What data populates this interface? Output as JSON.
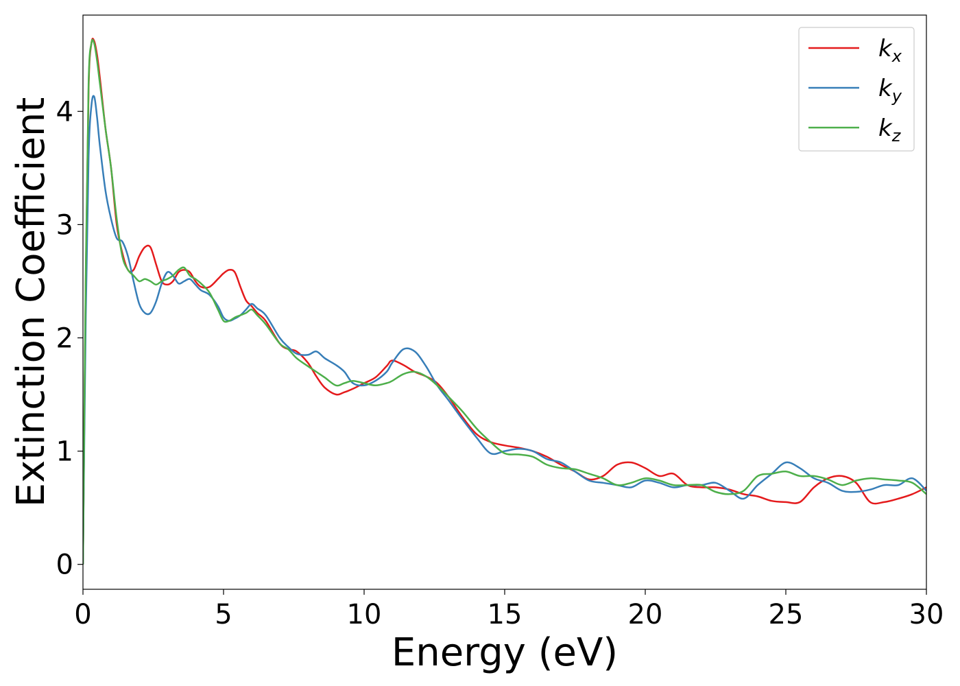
{
  "chart_data": {
    "type": "line",
    "title": "",
    "xlabel": "Energy (eV)",
    "ylabel": "Extinction Coefficient",
    "xlim": [
      0,
      30
    ],
    "ylim": [
      -0.22,
      4.85
    ],
    "xticks": [
      0,
      5,
      10,
      15,
      20,
      25,
      30
    ],
    "yticks": [
      0,
      1,
      2,
      3,
      4
    ],
    "grid": false,
    "legend_position": "top-right",
    "series": [
      {
        "name": "k_x",
        "label_base": "k",
        "label_sub": "x",
        "color": "#e41a1c",
        "x": [
          0,
          0.1,
          0.2,
          0.3,
          0.4,
          0.5,
          0.6,
          0.8,
          1.0,
          1.2,
          1.4,
          1.6,
          1.8,
          2.0,
          2.2,
          2.4,
          2.6,
          2.8,
          3.0,
          3.2,
          3.4,
          3.6,
          3.8,
          4.0,
          4.2,
          4.5,
          4.8,
          5.0,
          5.2,
          5.4,
          5.6,
          5.8,
          6.0,
          6.2,
          6.5,
          7.0,
          7.3,
          7.6,
          8.0,
          8.3,
          8.6,
          9.0,
          9.3,
          9.6,
          10.0,
          10.4,
          10.8,
          11.0,
          11.4,
          11.8,
          12.2,
          12.6,
          13.0,
          13.5,
          14.0,
          14.5,
          15.0,
          15.5,
          16.0,
          16.5,
          17.0,
          17.5,
          18.0,
          18.5,
          19.0,
          19.5,
          20.0,
          20.5,
          21.0,
          21.5,
          22.0,
          22.5,
          23.0,
          23.5,
          24.0,
          24.5,
          25.0,
          25.5,
          26.0,
          26.5,
          27.0,
          27.5,
          28.0,
          28.5,
          29.0,
          29.5,
          30.0
        ],
        "y": [
          0.0,
          2.5,
          4.2,
          4.6,
          4.62,
          4.5,
          4.3,
          3.85,
          3.5,
          3.0,
          2.75,
          2.6,
          2.6,
          2.72,
          2.8,
          2.8,
          2.65,
          2.5,
          2.47,
          2.5,
          2.58,
          2.6,
          2.58,
          2.5,
          2.45,
          2.45,
          2.52,
          2.57,
          2.6,
          2.58,
          2.45,
          2.33,
          2.28,
          2.22,
          2.15,
          1.95,
          1.9,
          1.88,
          1.78,
          1.66,
          1.56,
          1.5,
          1.52,
          1.55,
          1.6,
          1.65,
          1.75,
          1.8,
          1.76,
          1.7,
          1.66,
          1.6,
          1.48,
          1.3,
          1.15,
          1.08,
          1.05,
          1.03,
          1.0,
          0.95,
          0.88,
          0.82,
          0.75,
          0.78,
          0.88,
          0.9,
          0.85,
          0.78,
          0.8,
          0.7,
          0.68,
          0.68,
          0.66,
          0.62,
          0.6,
          0.56,
          0.55,
          0.55,
          0.68,
          0.76,
          0.78,
          0.72,
          0.55,
          0.55,
          0.58,
          0.62,
          0.68
        ]
      },
      {
        "name": "k_y",
        "label_base": "k",
        "label_sub": "y",
        "color": "#377eb8",
        "x": [
          0,
          0.1,
          0.2,
          0.3,
          0.4,
          0.5,
          0.6,
          0.8,
          1.0,
          1.2,
          1.4,
          1.6,
          1.8,
          2.0,
          2.2,
          2.4,
          2.6,
          2.8,
          3.0,
          3.2,
          3.4,
          3.6,
          3.8,
          4.0,
          4.2,
          4.5,
          4.8,
          5.0,
          5.2,
          5.4,
          5.6,
          5.8,
          6.0,
          6.2,
          6.5,
          7.0,
          7.3,
          7.6,
          8.0,
          8.3,
          8.6,
          9.0,
          9.3,
          9.6,
          10.0,
          10.4,
          10.8,
          11.0,
          11.4,
          11.8,
          12.2,
          12.6,
          13.0,
          13.5,
          14.0,
          14.5,
          15.0,
          15.5,
          16.0,
          16.5,
          17.0,
          17.5,
          18.0,
          18.5,
          19.0,
          19.5,
          20.0,
          20.5,
          21.0,
          21.5,
          22.0,
          22.5,
          23.0,
          23.5,
          24.0,
          24.5,
          25.0,
          25.5,
          26.0,
          26.5,
          27.0,
          27.5,
          28.0,
          28.5,
          29.0,
          29.5,
          30.0
        ],
        "y": [
          0.0,
          2.2,
          3.6,
          4.05,
          4.13,
          3.95,
          3.7,
          3.3,
          3.05,
          2.88,
          2.85,
          2.72,
          2.5,
          2.3,
          2.22,
          2.22,
          2.32,
          2.48,
          2.58,
          2.55,
          2.48,
          2.5,
          2.52,
          2.47,
          2.42,
          2.38,
          2.28,
          2.18,
          2.15,
          2.17,
          2.2,
          2.25,
          2.3,
          2.26,
          2.2,
          2.0,
          1.92,
          1.86,
          1.85,
          1.88,
          1.82,
          1.76,
          1.7,
          1.6,
          1.58,
          1.62,
          1.7,
          1.78,
          1.9,
          1.88,
          1.75,
          1.58,
          1.45,
          1.28,
          1.12,
          0.98,
          1.0,
          1.02,
          1.0,
          0.93,
          0.9,
          0.82,
          0.74,
          0.72,
          0.7,
          0.68,
          0.74,
          0.72,
          0.68,
          0.7,
          0.7,
          0.72,
          0.65,
          0.58,
          0.7,
          0.8,
          0.9,
          0.85,
          0.76,
          0.72,
          0.65,
          0.64,
          0.66,
          0.7,
          0.7,
          0.76,
          0.65
        ]
      },
      {
        "name": "k_z",
        "label_base": "k",
        "label_sub": "z",
        "color": "#4daf4a",
        "x": [
          0,
          0.1,
          0.2,
          0.3,
          0.4,
          0.5,
          0.6,
          0.8,
          1.0,
          1.2,
          1.4,
          1.6,
          1.8,
          2.0,
          2.2,
          2.4,
          2.6,
          2.8,
          3.0,
          3.2,
          3.4,
          3.6,
          3.8,
          4.0,
          4.2,
          4.5,
          4.8,
          5.0,
          5.2,
          5.4,
          5.6,
          5.8,
          6.0,
          6.2,
          6.5,
          7.0,
          7.3,
          7.6,
          8.0,
          8.3,
          8.6,
          9.0,
          9.3,
          9.6,
          10.0,
          10.4,
          10.8,
          11.0,
          11.4,
          11.8,
          12.2,
          12.6,
          13.0,
          13.5,
          14.0,
          14.5,
          15.0,
          15.5,
          16.0,
          16.5,
          17.0,
          17.5,
          18.0,
          18.5,
          19.0,
          19.5,
          20.0,
          20.5,
          21.0,
          21.5,
          22.0,
          22.5,
          23.0,
          23.5,
          24.0,
          24.5,
          25.0,
          25.5,
          26.0,
          26.5,
          27.0,
          27.5,
          28.0,
          28.5,
          29.0,
          29.5,
          30.0
        ],
        "y": [
          0.0,
          2.6,
          4.25,
          4.6,
          4.6,
          4.45,
          4.25,
          3.85,
          3.5,
          3.05,
          2.72,
          2.6,
          2.55,
          2.5,
          2.52,
          2.5,
          2.47,
          2.5,
          2.52,
          2.55,
          2.6,
          2.62,
          2.55,
          2.52,
          2.48,
          2.4,
          2.25,
          2.15,
          2.15,
          2.18,
          2.2,
          2.22,
          2.25,
          2.2,
          2.12,
          1.95,
          1.9,
          1.82,
          1.75,
          1.7,
          1.65,
          1.58,
          1.6,
          1.62,
          1.6,
          1.58,
          1.6,
          1.62,
          1.68,
          1.7,
          1.66,
          1.58,
          1.48,
          1.35,
          1.2,
          1.08,
          0.98,
          0.97,
          0.95,
          0.88,
          0.85,
          0.84,
          0.8,
          0.76,
          0.7,
          0.72,
          0.76,
          0.74,
          0.7,
          0.7,
          0.7,
          0.64,
          0.62,
          0.65,
          0.78,
          0.8,
          0.82,
          0.78,
          0.78,
          0.75,
          0.7,
          0.74,
          0.76,
          0.75,
          0.74,
          0.72,
          0.62
        ]
      }
    ]
  }
}
